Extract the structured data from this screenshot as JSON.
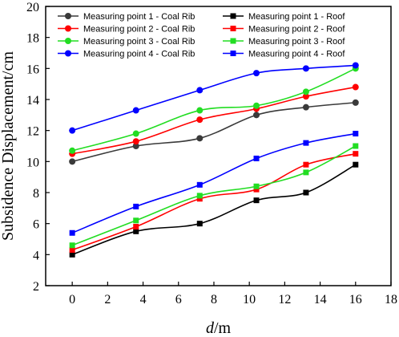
{
  "chart_data": {
    "type": "line",
    "title": "",
    "xlabel": "d/m",
    "ylabel": "Subsidence Displacement/cm",
    "xlim": [
      -1.5,
      18
    ],
    "ylim": [
      2,
      20
    ],
    "xticks": [
      0,
      2,
      4,
      6,
      8,
      10,
      12,
      14,
      16,
      18
    ],
    "yticks": [
      2,
      4,
      6,
      8,
      10,
      12,
      14,
      16,
      18,
      20
    ],
    "x": [
      0,
      3.6,
      7.2,
      10.4,
      13.2,
      16
    ],
    "legend_position": "top",
    "series": [
      {
        "name": "Measuring point 1 - Coal Rib",
        "marker": "circle",
        "color": "#3a3a3a",
        "values": [
          10.0,
          11.0,
          11.5,
          13.0,
          13.5,
          13.8
        ]
      },
      {
        "name": "Measuring point 1 - Roof",
        "marker": "square",
        "color": "#000000",
        "values": [
          4.0,
          5.5,
          6.0,
          7.5,
          8.0,
          9.8
        ]
      },
      {
        "name": "Measuring point 2 - Coal Rib",
        "marker": "circle",
        "color": "#ff0000",
        "values": [
          10.5,
          11.3,
          12.7,
          13.4,
          14.2,
          14.8
        ]
      },
      {
        "name": "Measuring point 2 - Roof",
        "marker": "square",
        "color": "#ff0000",
        "values": [
          4.3,
          5.8,
          7.6,
          8.2,
          9.8,
          10.5
        ]
      },
      {
        "name": "Measuring point 3 - Coal Rib",
        "marker": "circle",
        "color": "#22dd22",
        "values": [
          10.7,
          11.8,
          13.3,
          13.6,
          14.5,
          16.0
        ]
      },
      {
        "name": "Measuring point 3 - Roof",
        "marker": "square",
        "color": "#22dd22",
        "values": [
          4.6,
          6.2,
          7.8,
          8.4,
          9.3,
          11.0
        ]
      },
      {
        "name": "Measuring point 4 - Coal Rib",
        "marker": "circle",
        "color": "#0000ff",
        "values": [
          12.0,
          13.3,
          14.6,
          15.7,
          16.0,
          16.2
        ]
      },
      {
        "name": "Measuring point 4 - Roof",
        "marker": "square",
        "color": "#0000ff",
        "values": [
          5.4,
          7.1,
          8.5,
          10.2,
          11.2,
          11.8
        ]
      }
    ]
  }
}
